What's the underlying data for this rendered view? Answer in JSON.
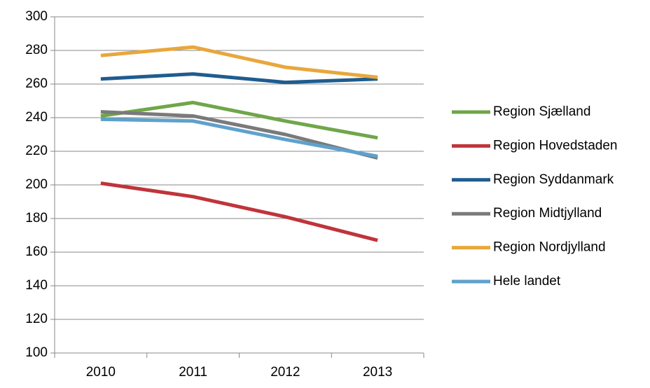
{
  "chart_data": {
    "type": "line",
    "categories": [
      "2010",
      "2011",
      "2012",
      "2013"
    ],
    "series": [
      {
        "name": "Region Sjælland",
        "color": "#70a64a",
        "values": [
          241,
          249,
          238,
          228
        ]
      },
      {
        "name": "Region Hovedstaden",
        "color": "#c0343a",
        "values": [
          201,
          193,
          181,
          167
        ]
      },
      {
        "name": "Region Syddanmark",
        "color": "#1f5c8f",
        "values": [
          263,
          266,
          261,
          263
        ]
      },
      {
        "name": "Region Midtjylland",
        "color": "#7a7a7a",
        "values": [
          243.5,
          241,
          230,
          216
        ]
      },
      {
        "name": "Region Nordjylland",
        "color": "#e8a73c",
        "values": [
          277,
          282,
          270,
          264
        ]
      },
      {
        "name": "Hele landet",
        "color": "#5ea1cc",
        "values": [
          239,
          238,
          227,
          217
        ]
      }
    ],
    "ylim": [
      100,
      300
    ],
    "yticks": [
      100,
      120,
      140,
      160,
      180,
      200,
      220,
      240,
      260,
      280,
      300
    ],
    "grid": true,
    "legend": "right"
  }
}
